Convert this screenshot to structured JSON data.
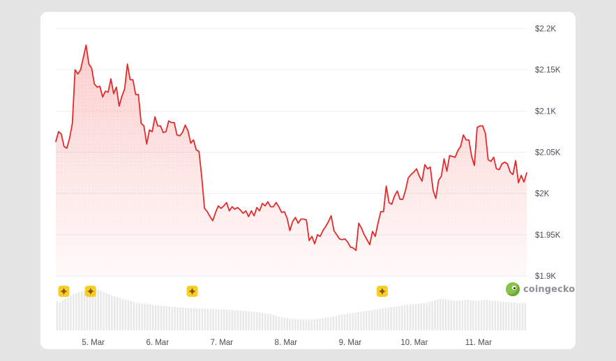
{
  "watermark": {
    "text": "coingecko",
    "icon": "coingecko-gecko-logo"
  },
  "colors": {
    "line": "#e22a2a",
    "area_top": "#f47a7a",
    "volume": "#e8e8e8",
    "grid": "#ededed",
    "tick_text": "#4a4f55",
    "marker_fill": "#f6cd2a",
    "marker_star": "#8a5a00"
  },
  "chart_data": {
    "type": "area",
    "title": "",
    "xlabel": "",
    "ylabel": "",
    "ylim": [
      1900,
      2200
    ],
    "grid": true,
    "y_axis_position": "right",
    "y_ticks": [
      {
        "value": 2200,
        "label": "$2.2K"
      },
      {
        "value": 2150,
        "label": "$2.15K"
      },
      {
        "value": 2100,
        "label": "$2.1K"
      },
      {
        "value": 2050,
        "label": "$2.05K"
      },
      {
        "value": 2000,
        "label": "$2K"
      },
      {
        "value": 1950,
        "label": "$1.95K"
      },
      {
        "value": 1900,
        "label": "$1.9K"
      }
    ],
    "x_range": [
      "4 Mar 10:00",
      "11 Mar 18:00"
    ],
    "x_ticks": [
      "5. Mar",
      "6. Mar",
      "7. Mar",
      "8. Mar",
      "9. Mar",
      "10. Mar",
      "11. Mar"
    ],
    "event_markers": [
      "4 Mar 13:00",
      "4 Mar 23:00",
      "6 Mar 13:00",
      "9 Mar 12:00"
    ],
    "series": [
      {
        "values": [
          2063,
          2075,
          2072,
          2057,
          2055,
          2067,
          2085,
          2150,
          2145,
          2150,
          2165,
          2180,
          2157,
          2152,
          2133,
          2129,
          2130,
          2117,
          2124,
          2123,
          2139,
          2121,
          2129,
          2106,
          2118,
          2127,
          2157,
          2138,
          2138,
          2120,
          2120,
          2085,
          2082,
          2060,
          2077,
          2075,
          2093,
          2082,
          2082,
          2074,
          2075,
          2088,
          2086,
          2086,
          2071,
          2070,
          2074,
          2083,
          2076,
          2061,
          2065,
          2053,
          2051,
          2020,
          1982,
          1978,
          1972,
          1967,
          1977,
          1985,
          1982,
          1985,
          1989,
          1979,
          1984,
          1981,
          1983,
          1980,
          1976,
          1979,
          1972,
          1979,
          1973,
          1983,
          1979,
          1988,
          1985,
          1990,
          1984,
          1984,
          1989,
          1984,
          1977,
          1978,
          1970,
          1955,
          1966,
          1971,
          1964,
          1969,
          1969,
          1968,
          1943,
          1948,
          1939,
          1950,
          1948,
          1955,
          1960,
          1966,
          1973,
          1955,
          1950,
          1945,
          1944,
          1945,
          1941,
          1935,
          1934,
          1931,
          1964,
          1958,
          1950,
          1944,
          1938,
          1954,
          1948,
          1964,
          1978,
          1978,
          2009,
          1989,
          1987,
          1997,
          2003,
          1993,
          1993,
          2004,
          2019,
          2023,
          2026,
          2030,
          2021,
          2015,
          2035,
          2030,
          2032,
          2004,
          1994,
          2016,
          2021,
          2042,
          2027,
          2046,
          2045,
          2044,
          2052,
          2057,
          2071,
          2065,
          2065,
          2045,
          2034,
          2080,
          2082,
          2082,
          2073,
          2041,
          2039,
          2044,
          2030,
          2029,
          2036,
          2038,
          2036,
          2026,
          2023,
          2040,
          2013,
          2022,
          2014,
          2025
        ]
      }
    ],
    "volume_relative": [
      0.72,
      0.7,
      0.74,
      0.78,
      0.82,
      0.86,
      0.9,
      0.92,
      0.94,
      0.96,
      0.98,
      1.0,
      0.97,
      0.98,
      0.99,
      1.0,
      0.98,
      0.95,
      0.92,
      0.9,
      0.86,
      0.84,
      0.82,
      0.8,
      0.78,
      0.76,
      0.74,
      0.72,
      0.7,
      0.68,
      0.67,
      0.66,
      0.66,
      0.65,
      0.64,
      0.63,
      0.62,
      0.62,
      0.61,
      0.6,
      0.6,
      0.59,
      0.58,
      0.58,
      0.57,
      0.57,
      0.56,
      0.56,
      0.55,
      0.55,
      0.55,
      0.54,
      0.54,
      0.54,
      0.54,
      0.53,
      0.53,
      0.53,
      0.52,
      0.52,
      0.52,
      0.52,
      0.51,
      0.51,
      0.5,
      0.5,
      0.49,
      0.49,
      0.48,
      0.48,
      0.47,
      0.46,
      0.46,
      0.45,
      0.44,
      0.43,
      0.42,
      0.41,
      0.4,
      0.38,
      0.36,
      0.34,
      0.32,
      0.31,
      0.3,
      0.29,
      0.28,
      0.28,
      0.27,
      0.27,
      0.27,
      0.27,
      0.27,
      0.27,
      0.28,
      0.28,
      0.29,
      0.3,
      0.31,
      0.32,
      0.33,
      0.34,
      0.36,
      0.38,
      0.39,
      0.4,
      0.41,
      0.42,
      0.43,
      0.44,
      0.45,
      0.46,
      0.47,
      0.48,
      0.49,
      0.5,
      0.51,
      0.52,
      0.53,
      0.54,
      0.55,
      0.56,
      0.57,
      0.58,
      0.59,
      0.6,
      0.62,
      0.63,
      0.64,
      0.64,
      0.65,
      0.65,
      0.66,
      0.66,
      0.67,
      0.68,
      0.7,
      0.72,
      0.74,
      0.76,
      0.78,
      0.78,
      0.77,
      0.75,
      0.74,
      0.73,
      0.73,
      0.74,
      0.74,
      0.75,
      0.75,
      0.74,
      0.74,
      0.73,
      0.73,
      0.74,
      0.75,
      0.75,
      0.74,
      0.73,
      0.73,
      0.72,
      0.72,
      0.71,
      0.7,
      0.7,
      0.69,
      0.69,
      0.68,
      0.68,
      0.67,
      0.67
    ]
  }
}
